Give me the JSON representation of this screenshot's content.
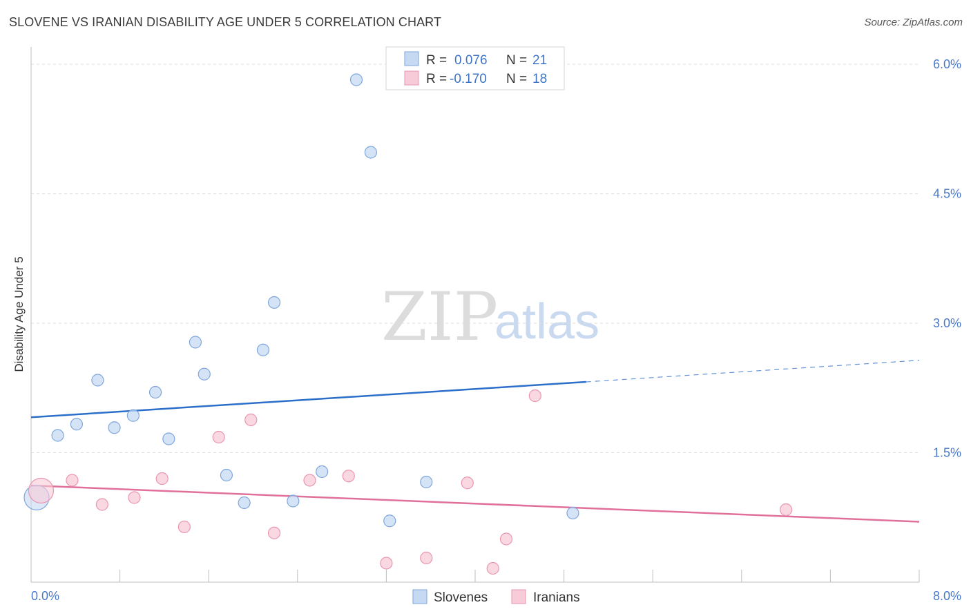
{
  "header": {
    "title": "SLOVENE VS IRANIAN DISABILITY AGE UNDER 5 CORRELATION CHART",
    "source": "Source: ZipAtlas.com"
  },
  "watermark": {
    "zip": "ZIP",
    "atlas": "atlas"
  },
  "legend_top": {
    "rows": [
      {
        "r_label": "R = ",
        "r_value": "0.076",
        "n_label": "N = ",
        "n_value": "21"
      },
      {
        "r_label": "R = ",
        "r_value": "-0.170",
        "n_label": "N = ",
        "n_value": "18"
      }
    ]
  },
  "legend_bottom": {
    "items": [
      "Slovenes",
      "Iranians"
    ]
  },
  "colors": {
    "slovene_fill": "#c5d9f3",
    "slovene_stroke": "#7ea6dc",
    "slovene_line": "#2b6fca",
    "iranian_fill": "#f8cbd8",
    "iranian_stroke": "#e995b0",
    "iranian_line": "#e0709a",
    "tick_text": "#4a7ac9"
  },
  "chart_data": {
    "type": "scatter",
    "title": "SLOVENE VS IRANIAN DISABILITY AGE UNDER 5 CORRELATION CHART",
    "xlabel": "",
    "ylabel": "Disability Age Under 5",
    "xlim": [
      0,
      8
    ],
    "ylim": [
      0,
      6.2
    ],
    "x_tick_labels": [
      "0.0%",
      "8.0%"
    ],
    "y_ticks": [
      1.5,
      3.0,
      4.5,
      6.0
    ],
    "y_tick_labels": [
      "1.5%",
      "3.0%",
      "4.5%",
      "6.0%"
    ],
    "series": [
      {
        "name": "Slovenes",
        "r": 0.076,
        "n": 21,
        "points": [
          {
            "x": 0.05,
            "y": 0.98,
            "big": true
          },
          {
            "x": 0.24,
            "y": 1.7
          },
          {
            "x": 0.41,
            "y": 1.83
          },
          {
            "x": 0.6,
            "y": 2.34
          },
          {
            "x": 0.75,
            "y": 1.79
          },
          {
            "x": 0.92,
            "y": 1.93
          },
          {
            "x": 1.12,
            "y": 2.2
          },
          {
            "x": 1.24,
            "y": 1.66
          },
          {
            "x": 1.48,
            "y": 2.78
          },
          {
            "x": 1.56,
            "y": 2.41
          },
          {
            "x": 1.76,
            "y": 1.24
          },
          {
            "x": 1.92,
            "y": 0.92
          },
          {
            "x": 2.09,
            "y": 2.69
          },
          {
            "x": 2.19,
            "y": 3.24
          },
          {
            "x": 2.36,
            "y": 0.94
          },
          {
            "x": 2.62,
            "y": 1.28
          },
          {
            "x": 2.93,
            "y": 5.82
          },
          {
            "x": 3.06,
            "y": 4.98
          },
          {
            "x": 3.23,
            "y": 0.71
          },
          {
            "x": 3.56,
            "y": 1.16
          },
          {
            "x": 4.88,
            "y": 0.8
          }
        ],
        "trend": {
          "x0": 0.0,
          "y0": 1.91,
          "x1": 5.0,
          "y1": 2.32,
          "dash_x1": 8.0,
          "dash_y1": 2.57
        }
      },
      {
        "name": "Iranians",
        "r": -0.17,
        "n": 18,
        "points": [
          {
            "x": 0.09,
            "y": 1.06,
            "big": true
          },
          {
            "x": 0.37,
            "y": 1.18
          },
          {
            "x": 0.64,
            "y": 0.9
          },
          {
            "x": 0.93,
            "y": 0.98
          },
          {
            "x": 1.18,
            "y": 1.2
          },
          {
            "x": 1.38,
            "y": 0.64
          },
          {
            "x": 1.69,
            "y": 1.68
          },
          {
            "x": 1.98,
            "y": 1.88
          },
          {
            "x": 2.19,
            "y": 0.57
          },
          {
            "x": 2.51,
            "y": 1.18
          },
          {
            "x": 2.86,
            "y": 1.23
          },
          {
            "x": 3.2,
            "y": 0.22
          },
          {
            "x": 3.56,
            "y": 0.28
          },
          {
            "x": 3.93,
            "y": 1.15
          },
          {
            "x": 4.16,
            "y": 0.16
          },
          {
            "x": 4.28,
            "y": 0.5
          },
          {
            "x": 4.54,
            "y": 2.16
          },
          {
            "x": 6.8,
            "y": 0.84
          }
        ],
        "trend": {
          "x0": 0.0,
          "y0": 1.12,
          "x1": 8.0,
          "y1": 0.7
        }
      }
    ]
  }
}
